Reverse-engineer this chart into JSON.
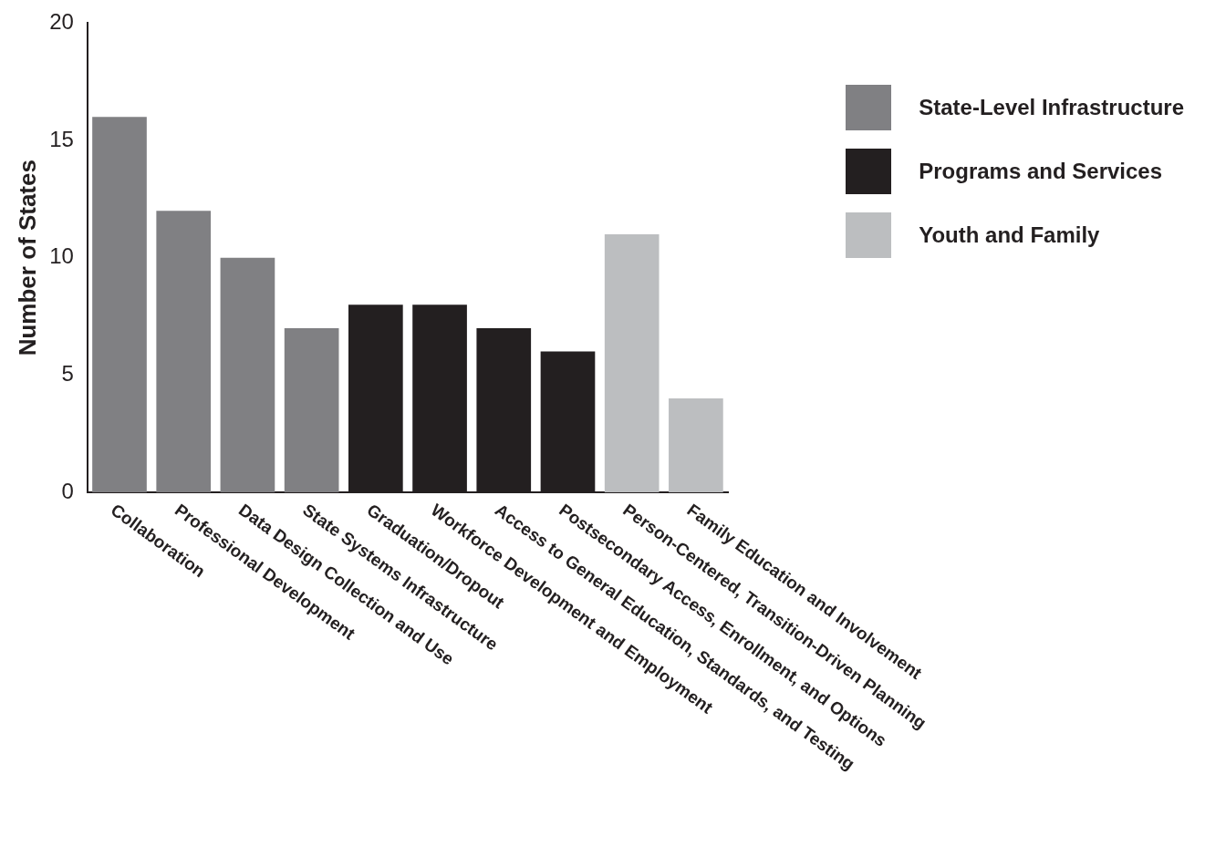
{
  "chart_data": {
    "type": "bar",
    "ylabel": "Number of States",
    "categories": [
      "Collaboration",
      "Professional Development",
      "Data Design Collection and Use",
      "State Systems Infrastructure",
      "Graduation/Dropout",
      "Workforce Development and Employment",
      "Access to General Education, Standards, and Testing",
      "Postsecondary Access, Enrollment, and Options",
      "Person-Centered, Transition-Driven Planning",
      "Family Education and Involvement"
    ],
    "series": [
      {
        "name": "State-Level Infrastructure",
        "color": "#808083",
        "values": [
          16,
          12,
          10,
          7,
          null,
          null,
          null,
          null,
          null,
          null
        ]
      },
      {
        "name": "Programs and Services",
        "color": "#231f20",
        "values": [
          null,
          null,
          null,
          null,
          8,
          8,
          7,
          6,
          null,
          null
        ]
      },
      {
        "name": "Youth and Family",
        "color": "#bcbec0",
        "values": [
          null,
          null,
          null,
          null,
          null,
          null,
          null,
          null,
          11,
          4
        ]
      }
    ],
    "ylim": [
      0,
      20
    ],
    "yticks": [
      0,
      5,
      10,
      15,
      20
    ],
    "grid": false,
    "legend": "top right"
  }
}
